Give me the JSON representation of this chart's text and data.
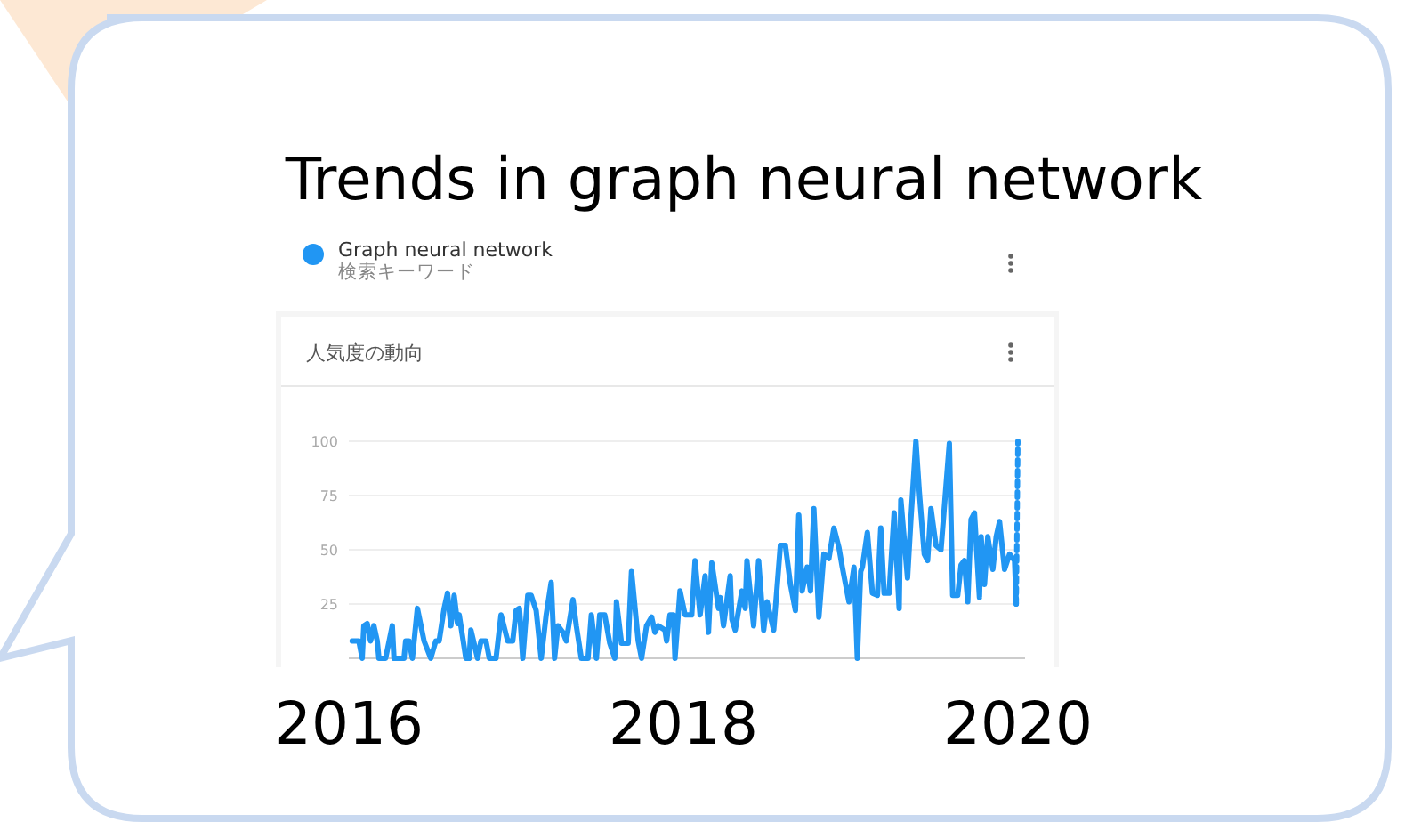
{
  "chart_data": {
    "type": "line",
    "title": "Trends in graph neural network",
    "subtitle": "人気度の動向",
    "legend_title": "検索キーワード",
    "legend": "top left",
    "grid": "y",
    "xlim": [
      2016,
      2020
    ],
    "xticks": [
      2016,
      2018,
      2020
    ],
    "ylim": [
      0,
      100
    ],
    "yticks": [
      25,
      50,
      75,
      100
    ],
    "series": [
      {
        "name": "Graph neural network",
        "color": "#2196f3",
        "x": [
          2016.02,
          2016.06,
          2016.08,
          2016.09,
          2016.11,
          2016.13,
          2016.15,
          2016.17,
          2016.18,
          2016.22,
          2016.26,
          2016.27,
          2016.33,
          2016.34,
          2016.36,
          2016.38,
          2016.41,
          2016.45,
          2016.49,
          2016.52,
          2016.54,
          2016.57,
          2016.59,
          2016.61,
          2016.63,
          2016.65,
          2016.66,
          2016.7,
          2016.72,
          2016.73,
          2016.77,
          2016.79,
          2016.82,
          2016.84,
          2016.88,
          2016.91,
          2016.95,
          2016.98,
          2017.0,
          2017.02,
          2017.04,
          2017.07,
          2017.09,
          2017.12,
          2017.15,
          2017.18,
          2017.21,
          2017.23,
          2017.25,
          2017.28,
          2017.3,
          2017.34,
          2017.36,
          2017.39,
          2017.43,
          2017.45,
          2017.48,
          2017.5,
          2017.53,
          2017.56,
          2017.59,
          2017.6,
          2017.63,
          2017.67,
          2017.69,
          2017.73,
          2017.75,
          2017.78,
          2017.81,
          2017.83,
          2017.85,
          2017.89,
          2017.9,
          2017.92,
          2017.94,
          2017.95,
          2017.98,
          2018.01,
          2018.05,
          2018.07,
          2018.1,
          2018.13,
          2018.15,
          2018.17,
          2018.21,
          2018.22,
          2018.24,
          2018.28,
          2018.29,
          2018.31,
          2018.35,
          2018.37,
          2018.38,
          2018.42,
          2018.45,
          2018.48,
          2018.5,
          2018.54,
          2018.58,
          2018.61,
          2018.64,
          2018.67,
          2018.69,
          2018.71,
          2018.74,
          2018.76,
          2018.78,
          2018.81,
          2018.84,
          2018.87,
          2018.9,
          2018.93,
          2018.95,
          2018.99,
          2019.02,
          2019.04,
          2019.06,
          2019.07,
          2019.1,
          2019.13,
          2019.16,
          2019.18,
          2019.2,
          2019.23,
          2019.26,
          2019.29,
          2019.3,
          2019.34,
          2019.36,
          2019.39,
          2019.41,
          2019.44,
          2019.46,
          2019.48,
          2019.51,
          2019.54,
          2019.59,
          2019.61,
          2019.64,
          2019.66,
          2019.68,
          2019.7,
          2019.72,
          2019.74,
          2019.77,
          2019.78,
          2019.8,
          2019.82,
          2019.85,
          2019.87,
          2019.89,
          2019.92,
          2019.95,
          2019.98,
          2019.99
        ],
        "values": [
          8,
          8,
          0,
          15,
          16,
          8,
          15,
          8,
          0,
          0,
          15,
          0,
          0,
          8,
          8,
          0,
          23,
          8,
          0,
          8,
          8,
          23,
          30,
          15,
          29,
          16,
          20,
          0,
          0,
          13,
          0,
          8,
          8,
          0,
          0,
          20,
          8,
          8,
          22,
          23,
          0,
          29,
          29,
          22,
          0,
          20,
          35,
          0,
          15,
          12,
          8,
          27,
          15,
          0,
          0,
          20,
          0,
          20,
          20,
          7,
          0,
          26,
          7,
          7,
          40,
          8,
          0,
          15,
          19,
          12,
          15,
          13,
          8,
          20,
          20,
          0,
          31,
          20,
          20,
          45,
          20,
          38,
          12,
          44,
          23,
          28,
          15,
          38,
          18,
          13,
          31,
          23,
          45,
          15,
          45,
          13,
          26,
          13,
          52,
          52,
          34,
          22,
          66,
          31,
          42,
          31,
          69,
          19,
          48,
          46,
          60,
          51,
          42,
          26,
          42,
          0,
          40,
          42,
          58,
          30,
          29,
          60,
          30,
          30,
          67,
          23,
          73,
          37,
          64,
          100,
          77,
          48,
          45,
          69,
          52,
          50,
          99,
          29,
          29,
          43,
          45,
          26,
          64,
          67,
          28,
          56,
          34,
          56,
          41,
          56,
          63,
          41,
          48,
          45,
          25
        ]
      },
      {
        "type": "line",
        "color": "#2196f3",
        "line_style": "dashed",
        "x": [
          2019.99,
          2020.0
        ],
        "values": [
          25,
          100
        ]
      }
    ]
  }
}
